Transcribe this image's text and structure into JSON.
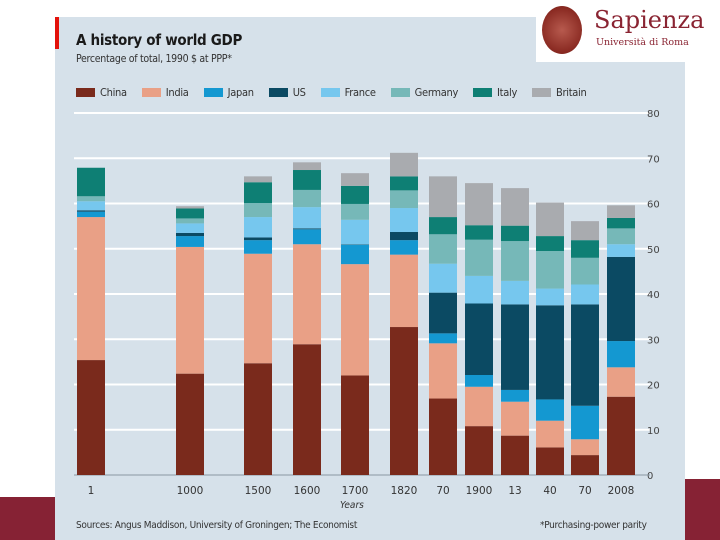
{
  "logo": {
    "name": "Sapienza",
    "subtitle": "Università di Roma"
  },
  "chart_data": {
    "type": "bar",
    "stacked": true,
    "title": "A history of world GDP",
    "subtitle": "Percentage of total, 1990 $ at PPP*",
    "xlabel": "Years",
    "ylabel": "",
    "ylim": [
      0,
      80
    ],
    "yticks": [
      0,
      10,
      20,
      30,
      40,
      50,
      60,
      70,
      80
    ],
    "y_axis_side": "right",
    "grid": true,
    "legend_position": "top",
    "categories": [
      "1",
      "1000",
      "1500",
      "1600",
      "1700",
      "1820",
      "70",
      "1900",
      "13",
      "40",
      "70",
      "2008"
    ],
    "series": [
      {
        "name": "China",
        "color": "#7a2a1c",
        "values": [
          25.4,
          22.4,
          24.7,
          28.9,
          22.0,
          32.7,
          16.9,
          10.8,
          8.7,
          6.1,
          4.4,
          17.3
        ]
      },
      {
        "name": "India",
        "color": "#e9a086",
        "values": [
          31.6,
          28.0,
          24.2,
          22.1,
          24.6,
          16.0,
          12.2,
          8.7,
          7.5,
          5.9,
          3.5,
          6.5
        ]
      },
      {
        "name": "Japan",
        "color": "#1498d1",
        "values": [
          1.2,
          2.4,
          3.0,
          3.3,
          4.3,
          3.2,
          2.2,
          2.6,
          2.6,
          4.7,
          7.4,
          5.8
        ]
      },
      {
        "name": "US",
        "color": "#0b4a63",
        "values": [
          0.3,
          0.7,
          0.6,
          0.2,
          0.1,
          1.8,
          9.0,
          15.8,
          18.9,
          20.8,
          22.4,
          18.6
        ]
      },
      {
        "name": "France",
        "color": "#76c7ee",
        "values": [
          2.0,
          2.1,
          4.5,
          4.7,
          5.4,
          5.3,
          6.4,
          6.1,
          5.2,
          3.7,
          4.4,
          2.8
        ]
      },
      {
        "name": "Germany",
        "color": "#76b8b8",
        "values": [
          1.1,
          1.1,
          3.1,
          3.8,
          3.5,
          3.9,
          6.5,
          8.0,
          8.8,
          8.3,
          5.9,
          3.5
        ]
      },
      {
        "name": "Italy",
        "color": "#0e7f74",
        "values": [
          6.3,
          2.2,
          4.6,
          4.4,
          4.0,
          3.1,
          3.8,
          3.2,
          3.4,
          3.3,
          3.9,
          2.3
        ]
      },
      {
        "name": "Britain",
        "color": "#a9abaf",
        "values": [
          0.0,
          0.5,
          1.3,
          1.7,
          2.8,
          5.2,
          9.0,
          9.3,
          8.3,
          7.4,
          4.2,
          2.8
        ]
      }
    ],
    "source": "Sources: Angus Maddison, University of Groningen; The Economist",
    "footnote": "*Purchasing-power parity"
  }
}
